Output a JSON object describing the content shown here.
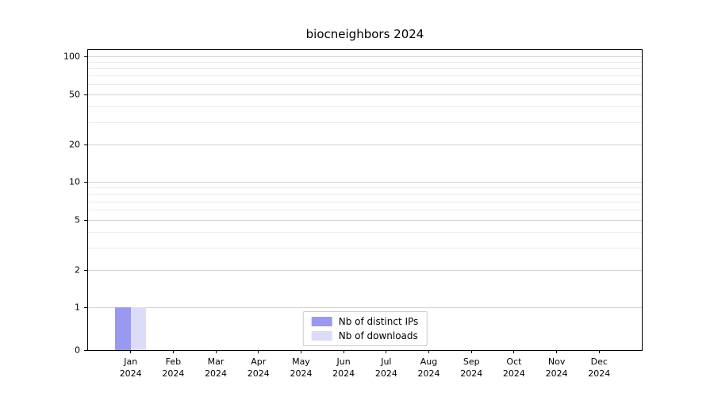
{
  "chart_data": {
    "type": "bar",
    "title": "biocneighbors 2024",
    "categories": [
      "Jan",
      "Feb",
      "Mar",
      "Apr",
      "May",
      "Jun",
      "Jul",
      "Aug",
      "Sep",
      "Oct",
      "Nov",
      "Dec"
    ],
    "year_label": "2024",
    "series": [
      {
        "name": "Nb of distinct IPs",
        "color": "#9a99f2",
        "values": [
          1,
          0,
          0,
          0,
          0,
          0,
          0,
          0,
          0,
          0,
          0,
          0
        ]
      },
      {
        "name": "Nb of downloads",
        "color": "#dcdcf9",
        "values": [
          1,
          0,
          0,
          0,
          0,
          0,
          0,
          0,
          0,
          0,
          0,
          0
        ]
      }
    ],
    "yaxis": {
      "scale": "symlog",
      "ticks": [
        0,
        1,
        2,
        5,
        10,
        20,
        50,
        100
      ],
      "minor_gridlines": [
        3,
        4,
        6,
        7,
        8,
        9,
        30,
        40,
        60,
        70,
        80,
        90
      ],
      "ylim": [
        0,
        100
      ]
    },
    "legend": {
      "position": "bottom-center"
    },
    "grid": "horizontal",
    "colors": {
      "axis": "#000000",
      "grid_major": "#d2d2d2",
      "grid_minor": "#ebebeb",
      "legend_border": "#cccccc",
      "background": "#ffffff"
    }
  }
}
